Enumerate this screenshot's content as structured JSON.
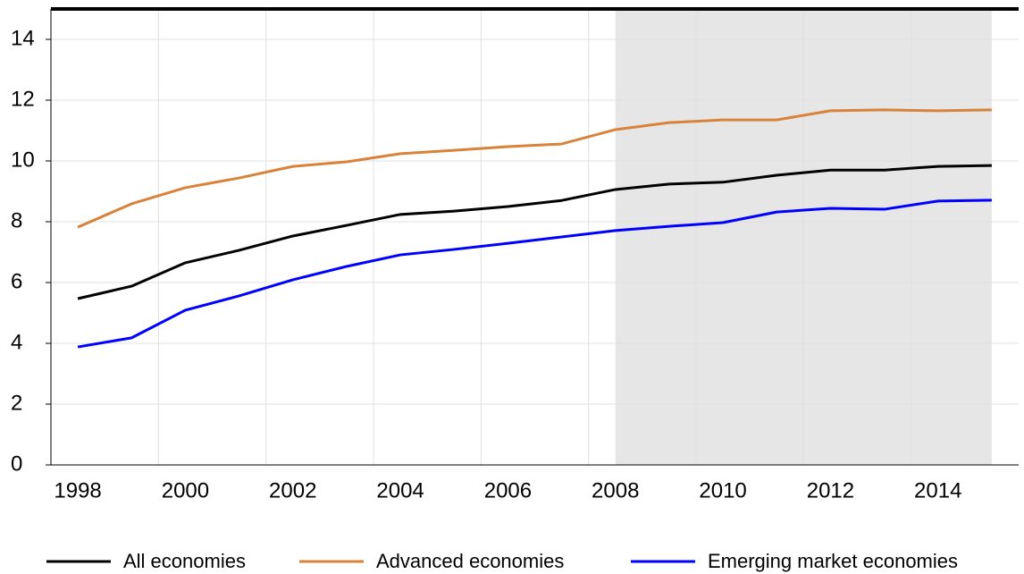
{
  "chart_data": {
    "type": "line",
    "categories": [
      "1998",
      null,
      "2000",
      null,
      "2002",
      null,
      "2004",
      null,
      "2006",
      null,
      "2008",
      null,
      "2010",
      null,
      "2012",
      null,
      "2014",
      null
    ],
    "series": [
      {
        "name": "All economies",
        "color": "#000000",
        "values": [
          5.47,
          5.88,
          6.65,
          7.06,
          7.53,
          7.88,
          8.24,
          8.35,
          8.5,
          8.7,
          9.06,
          9.24,
          9.3,
          9.53,
          9.7,
          9.7,
          9.82,
          9.85
        ]
      },
      {
        "name": "Advanced economies",
        "color": "#d9823b",
        "values": [
          7.82,
          8.59,
          9.12,
          9.44,
          9.82,
          9.97,
          10.24,
          10.35,
          10.47,
          10.56,
          11.03,
          11.26,
          11.35,
          11.35,
          11.65,
          11.68,
          11.65,
          11.68
        ]
      },
      {
        "name": "Emerging market economies",
        "color": "#0000ff",
        "values": [
          3.88,
          4.18,
          5.09,
          5.56,
          6.09,
          6.53,
          6.91,
          7.09,
          7.29,
          7.5,
          7.71,
          7.85,
          7.97,
          8.32,
          8.44,
          8.41,
          8.68,
          8.71
        ]
      }
    ],
    "ylim": [
      0,
      15
    ],
    "yticks": [
      0,
      2,
      4,
      6,
      8,
      10,
      12,
      14
    ],
    "grid": true,
    "legend": "bottom"
  }
}
